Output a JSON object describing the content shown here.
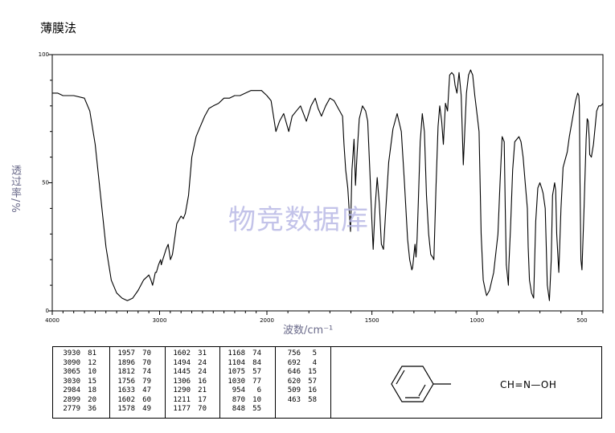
{
  "title": "薄膜法",
  "watermark": "物竞数据库",
  "chart_data": {
    "type": "line",
    "ylabel": "透过率/%",
    "xlabel": "波数/cm⁻¹",
    "x_reversed": true,
    "xlim": [
      4000,
      400
    ],
    "ylim": [
      0,
      100
    ],
    "x_ticks": [
      4000,
      3000,
      2000,
      1500,
      1000,
      500
    ],
    "y_ticks": [
      0,
      50,
      100
    ],
    "grid": false,
    "series": [
      {
        "x": [
          4000,
          3950,
          3900,
          3800,
          3700,
          3650,
          3600,
          3550,
          3500,
          3450,
          3400,
          3350,
          3300,
          3250,
          3200,
          3150,
          3100,
          3090,
          3080,
          3065,
          3055,
          3040,
          3030,
          3010,
          2990,
          2984,
          2970,
          2940,
          2920,
          2899,
          2880,
          2860,
          2840,
          2800,
          2779,
          2760,
          2730,
          2700,
          2660,
          2620,
          2580,
          2540,
          2500,
          2450,
          2400,
          2350,
          2300,
          2250,
          2200,
          2150,
          2100,
          2050,
          2000,
          1980,
          1957,
          1940,
          1920,
          1896,
          1880,
          1860,
          1840,
          1812,
          1790,
          1770,
          1756,
          1740,
          1720,
          1700,
          1680,
          1660,
          1640,
          1633,
          1625,
          1615,
          1602,
          1595,
          1585,
          1578,
          1570,
          1560,
          1545,
          1530,
          1520,
          1510,
          1500,
          1494,
          1485,
          1475,
          1465,
          1455,
          1445,
          1435,
          1420,
          1400,
          1380,
          1360,
          1345,
          1330,
          1320,
          1310,
          1306,
          1300,
          1295,
          1290,
          1285,
          1280,
          1270,
          1260,
          1250,
          1240,
          1230,
          1220,
          1211,
          1205,
          1195,
          1185,
          1177,
          1168,
          1160,
          1150,
          1140,
          1130,
          1120,
          1110,
          1104,
          1095,
          1085,
          1075,
          1065,
          1050,
          1040,
          1030,
          1020,
          1010,
          1000,
          990,
          980,
          970,
          960,
          954,
          940,
          920,
          900,
          890,
          880,
          870,
          865,
          860,
          850,
          848,
          840,
          830,
          820,
          800,
          790,
          780,
          770,
          760,
          756,
          750,
          740,
          730,
          720,
          710,
          700,
          692,
          685,
          675,
          665,
          655,
          646,
          640,
          630,
          625,
          620,
          610,
          600,
          590,
          580,
          570,
          560,
          545,
          530,
          520,
          515,
          512,
          509,
          505,
          500,
          490,
          480,
          475,
          470,
          465,
          463,
          455,
          445,
          430,
          420,
          410,
          400
        ],
        "y": [
          85,
          85,
          84,
          84,
          83,
          78,
          65,
          45,
          25,
          12,
          7,
          5,
          4,
          5,
          8,
          12,
          14,
          13,
          12,
          10,
          12,
          15,
          15,
          18,
          20,
          18,
          20,
          24,
          26,
          20,
          22,
          28,
          34,
          37,
          36,
          38,
          45,
          60,
          68,
          72,
          76,
          79,
          80,
          81,
          83,
          83,
          84,
          84,
          85,
          86,
          86,
          86,
          84,
          82,
          70,
          74,
          77,
          70,
          76,
          78,
          80,
          74,
          80,
          83,
          79,
          76,
          80,
          83,
          82,
          79,
          76,
          65,
          55,
          48,
          31,
          55,
          67,
          49,
          62,
          75,
          80,
          78,
          74,
          55,
          35,
          24,
          40,
          52,
          42,
          26,
          24,
          38,
          58,
          71,
          77,
          70,
          50,
          28,
          20,
          16,
          17,
          22,
          26,
          21,
          28,
          40,
          66,
          77,
          70,
          45,
          30,
          22,
          21,
          20,
          48,
          72,
          80,
          74,
          65,
          81,
          78,
          92,
          93,
          92,
          88,
          85,
          93,
          84,
          57,
          85,
          92,
          94,
          92,
          84,
          77,
          70,
          30,
          12,
          8,
          6,
          8,
          15,
          30,
          50,
          68,
          66,
          40,
          18,
          10,
          18,
          32,
          55,
          66,
          68,
          66,
          60,
          50,
          40,
          25,
          12,
          7,
          5,
          35,
          48,
          50,
          48,
          46,
          40,
          10,
          4,
          20,
          45,
          50,
          47,
          30,
          15,
          40,
          56,
          59,
          62,
          68,
          75,
          82,
          85,
          84,
          80,
          50,
          20,
          16,
          40,
          67,
          75,
          74,
          67,
          61,
          60,
          65,
          78,
          80,
          80,
          81
        ]
      }
    ],
    "peaks": [
      [
        3930,
        81
      ],
      [
        3090,
        12
      ],
      [
        3065,
        10
      ],
      [
        3030,
        15
      ],
      [
        2984,
        18
      ],
      [
        2899,
        20
      ],
      [
        2779,
        36
      ],
      [
        1957,
        70
      ],
      [
        1896,
        70
      ],
      [
        1812,
        74
      ],
      [
        1756,
        79
      ],
      [
        1633,
        47
      ],
      [
        1602,
        60
      ],
      [
        1578,
        49
      ],
      [
        1602,
        31
      ],
      [
        1494,
        24
      ],
      [
        1445,
        24
      ],
      [
        1306,
        16
      ],
      [
        1290,
        21
      ],
      [
        1211,
        17
      ],
      [
        1177,
        70
      ],
      [
        1168,
        74
      ],
      [
        1104,
        84
      ],
      [
        1075,
        57
      ],
      [
        1030,
        77
      ],
      [
        954,
        6
      ],
      [
        870,
        10
      ],
      [
        848,
        55
      ],
      [
        756,
        5
      ],
      [
        692,
        4
      ],
      [
        646,
        15
      ],
      [
        620,
        57
      ],
      [
        509,
        16
      ],
      [
        463,
        58
      ]
    ]
  },
  "structure": {
    "formula": "CH=N—OH"
  }
}
